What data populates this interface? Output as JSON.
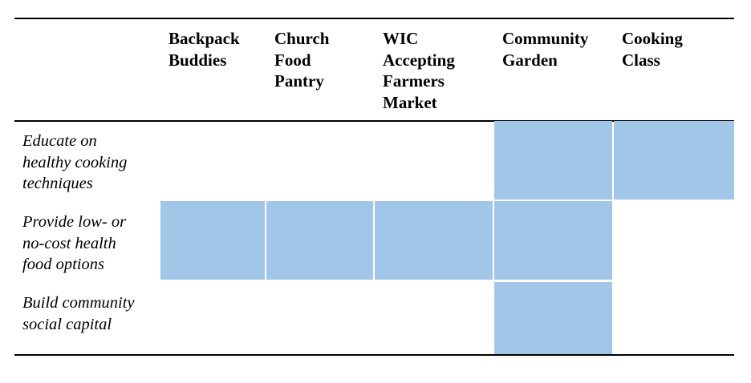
{
  "table": {
    "columns": [
      [
        "Backpack",
        "Buddies"
      ],
      [
        "Church",
        "Food",
        "Pantry"
      ],
      [
        "WIC",
        "Accepting",
        "Farmers",
        "Market"
      ],
      [
        "Community",
        "Garden"
      ],
      [
        "Cooking",
        "Class"
      ]
    ],
    "rows": [
      {
        "label": [
          "Educate on",
          "healthy cooking",
          "techniques"
        ],
        "marked": [
          false,
          false,
          false,
          true,
          true
        ]
      },
      {
        "label": [
          "Provide low- or",
          "no-cost health",
          "food options"
        ],
        "marked": [
          true,
          true,
          true,
          true,
          false
        ]
      },
      {
        "label": [
          "Build community",
          "social capital"
        ],
        "marked": [
          false,
          false,
          false,
          true,
          false
        ]
      }
    ],
    "highlight_color": "#a2c6e8"
  }
}
